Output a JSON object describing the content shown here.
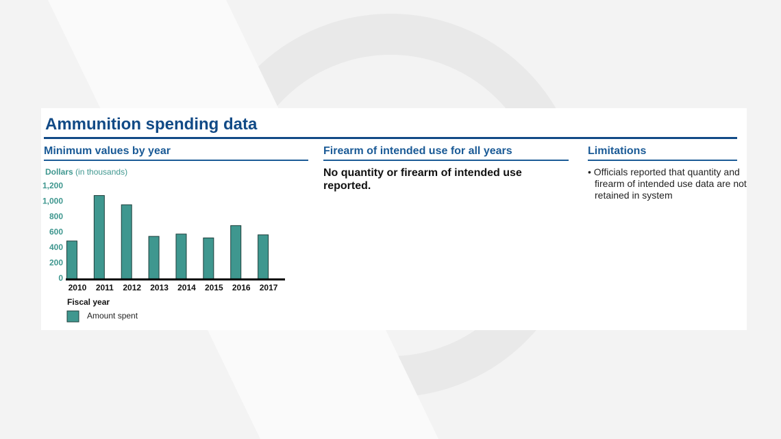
{
  "title": "Ammunition spending data",
  "columns": [
    {
      "heading": "Minimum values by year"
    },
    {
      "heading": "Firearm of intended use for all years",
      "body": "No quantity or firearm of intended use reported."
    },
    {
      "heading": "Limitations",
      "bullets": [
        "Officials reported that quantity and firearm of intended use data are not retained in system"
      ]
    }
  ],
  "chart_data": {
    "type": "bar",
    "y_label": "Dollars",
    "y_label_note": "(in thousands)",
    "x_label": "Fiscal year",
    "categories": [
      "2010",
      "2011",
      "2012",
      "2013",
      "2014",
      "2015",
      "2016",
      "2017"
    ],
    "series": [
      {
        "name": "Amount spent",
        "color": "#3f978f",
        "values": [
          490,
          1080,
          960,
          550,
          580,
          530,
          690,
          570
        ]
      }
    ],
    "ylim": [
      0,
      1200
    ],
    "yticks": [
      0,
      200,
      400,
      600,
      800,
      {
        "value": 1000,
        "label": "1,000"
      },
      {
        "value": 1200,
        "label": "1,200"
      }
    ]
  }
}
